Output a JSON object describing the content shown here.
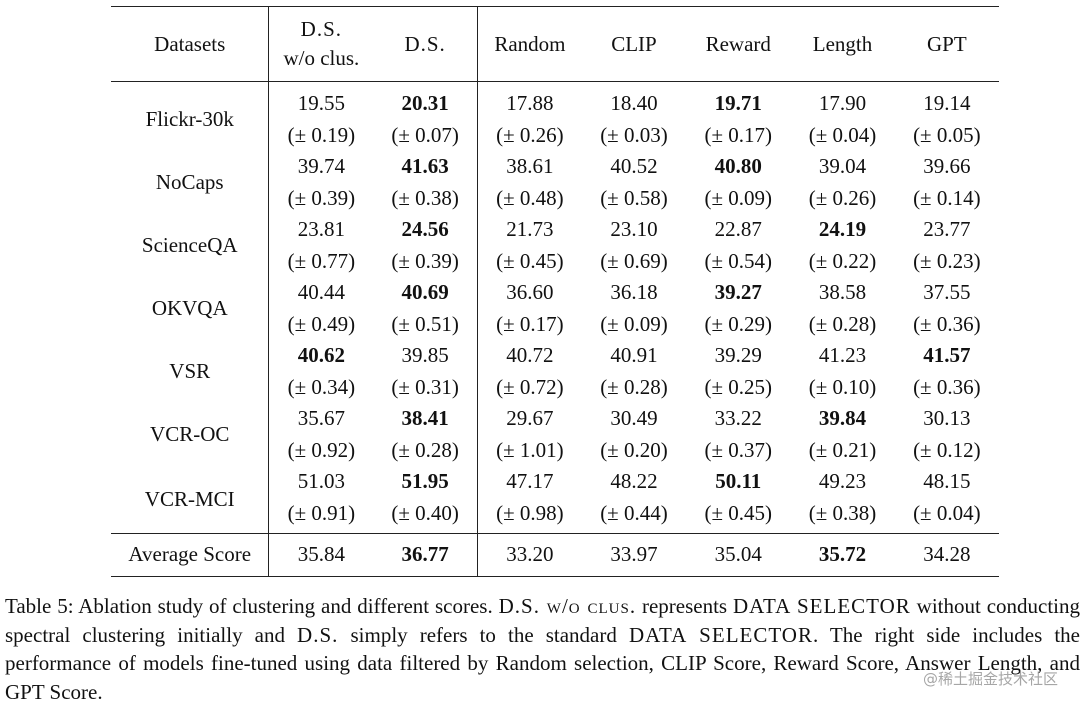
{
  "table": {
    "header": {
      "datasets": "Datasets",
      "ds_wo_clus_line1": "D.S.",
      "ds_wo_clus_line2": "w/o clus.",
      "ds": "D.S.",
      "random": "Random",
      "clip": "CLIP",
      "reward": "Reward",
      "length": "Length",
      "gpt": "GPT"
    },
    "rows": [
      {
        "name": "Flickr-30k",
        "means": [
          "19.55",
          "20.31",
          "17.88",
          "18.40",
          "19.71",
          "17.90",
          "19.14"
        ],
        "stds": [
          "(± 0.19)",
          "(± 0.07)",
          "(± 0.26)",
          "(± 0.03)",
          "(± 0.17)",
          "(± 0.04)",
          "(± 0.05)"
        ],
        "bold": [
          1,
          4
        ]
      },
      {
        "name": "NoCaps",
        "means": [
          "39.74",
          "41.63",
          "38.61",
          "40.52",
          "40.80",
          "39.04",
          "39.66"
        ],
        "stds": [
          "(± 0.39)",
          "(± 0.38)",
          "(± 0.48)",
          "(± 0.58)",
          "(± 0.09)",
          "(± 0.26)",
          "(± 0.14)"
        ],
        "bold": [
          1,
          4
        ]
      },
      {
        "name": "ScienceQA",
        "means": [
          "23.81",
          "24.56",
          "21.73",
          "23.10",
          "22.87",
          "24.19",
          "23.77"
        ],
        "stds": [
          "(± 0.77)",
          "(± 0.39)",
          "(± 0.45)",
          "(± 0.69)",
          "(± 0.54)",
          "(± 0.22)",
          "(± 0.23)"
        ],
        "bold": [
          1,
          5
        ]
      },
      {
        "name": "OKVQA",
        "means": [
          "40.44",
          "40.69",
          "36.60",
          "36.18",
          "39.27",
          "38.58",
          "37.55"
        ],
        "stds": [
          "(± 0.49)",
          "(± 0.51)",
          "(± 0.17)",
          "(± 0.09)",
          "(± 0.29)",
          "(± 0.28)",
          "(± 0.36)"
        ],
        "bold": [
          1,
          4
        ]
      },
      {
        "name": "VSR",
        "means": [
          "40.62",
          "39.85",
          "40.72",
          "40.91",
          "39.29",
          "41.23",
          "41.57"
        ],
        "stds": [
          "(± 0.34)",
          "(± 0.31)",
          "(± 0.72)",
          "(± 0.28)",
          "(± 0.25)",
          "(± 0.10)",
          "(± 0.36)"
        ],
        "bold": [
          0,
          6
        ]
      },
      {
        "name": "VCR-OC",
        "means": [
          "35.67",
          "38.41",
          "29.67",
          "30.49",
          "33.22",
          "39.84",
          "30.13"
        ],
        "stds": [
          "(± 0.92)",
          "(± 0.28)",
          "(± 1.01)",
          "(± 0.20)",
          "(± 0.37)",
          "(± 0.21)",
          "(± 0.12)"
        ],
        "bold": [
          1,
          5
        ]
      },
      {
        "name": "VCR-MCI",
        "means": [
          "51.03",
          "51.95",
          "47.17",
          "48.22",
          "50.11",
          "49.23",
          "48.15"
        ],
        "stds": [
          "(± 0.91)",
          "(± 0.40)",
          "(± 0.98)",
          "(± 0.44)",
          "(± 0.45)",
          "(± 0.38)",
          "(± 0.04)"
        ],
        "bold": [
          1,
          4
        ]
      }
    ],
    "average": {
      "name": "Average Score",
      "values": [
        "35.84",
        "36.77",
        "33.20",
        "33.97",
        "35.04",
        "35.72",
        "34.28"
      ],
      "bold": [
        1,
        5
      ]
    }
  },
  "caption": {
    "label": "Table 5:",
    "t1": " Ablation study of clustering and different scores. ",
    "sc1": "D.S. w/o clus.",
    "t2": " represents ",
    "sc2": "DATA SELECTOR",
    "t3": " without conducting spectral clustering initially and ",
    "sc3": "D.S.",
    "t4": " simply refers to the standard ",
    "sc4": "DATA SELECTOR",
    "t5": ". The right side includes the performance of models fine-tuned using data filtered by Random selection, CLIP Score, Reward Score, Answer Length, and GPT Score."
  },
  "watermark": "@稀土掘金技术社区"
}
